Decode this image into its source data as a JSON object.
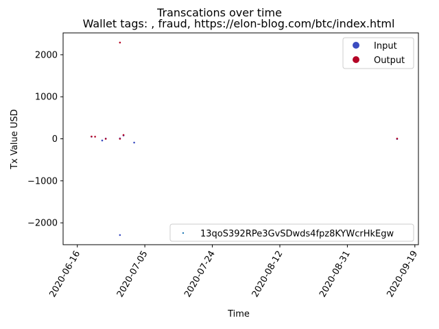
{
  "chart_data": {
    "type": "scatter",
    "suptitle": "Transcations over time",
    "title": "Wallet tags: , fraud, https://elon-blog.com/btc/index.html",
    "xlabel": "Time",
    "ylabel": "Tx Value USD",
    "xlim": [
      "2020-06-12",
      "2020-09-20"
    ],
    "ylim": [
      -2520,
      2520
    ],
    "x_ticks": [
      "2020-06-16",
      "2020-07-05",
      "2020-07-24",
      "2020-08-12",
      "2020-08-31",
      "2020-09-19"
    ],
    "y_ticks": [
      2000,
      1000,
      0,
      -1000,
      -2000
    ],
    "y_tick_labels": [
      "2000",
      "1000",
      "0",
      "−1000",
      "−2000"
    ],
    "colors": {
      "input": "#3b4cc0",
      "output": "#b40426",
      "address": "#1f77b4"
    },
    "series": [
      {
        "name": "Input",
        "points": [
          {
            "x": "2020-06-20",
            "y": 50
          },
          {
            "x": "2020-06-23",
            "y": -40
          },
          {
            "x": "2020-06-24",
            "y": 5
          },
          {
            "x": "2020-06-28",
            "y": 10
          },
          {
            "x": "2020-06-28",
            "y": -2290
          },
          {
            "x": "2020-06-29",
            "y": 80
          },
          {
            "x": "2020-07-02",
            "y": -90
          },
          {
            "x": "2020-09-14",
            "y": -5
          }
        ]
      },
      {
        "name": "Output",
        "points": [
          {
            "x": "2020-06-20",
            "y": 55
          },
          {
            "x": "2020-06-21",
            "y": 50
          },
          {
            "x": "2020-06-24",
            "y": 0
          },
          {
            "x": "2020-06-28",
            "y": 2290
          },
          {
            "x": "2020-06-28",
            "y": 0
          },
          {
            "x": "2020-06-29",
            "y": 90
          },
          {
            "x": "2020-09-14",
            "y": 5
          }
        ]
      }
    ],
    "legend_upper": {
      "position": "top-right",
      "entries": [
        "Input",
        "Output"
      ]
    },
    "legend_lower": {
      "position": "bottom-right",
      "entries": [
        "13qoS392RPe3GvSDwds4fpz8KYWcrHkEgw"
      ]
    }
  }
}
